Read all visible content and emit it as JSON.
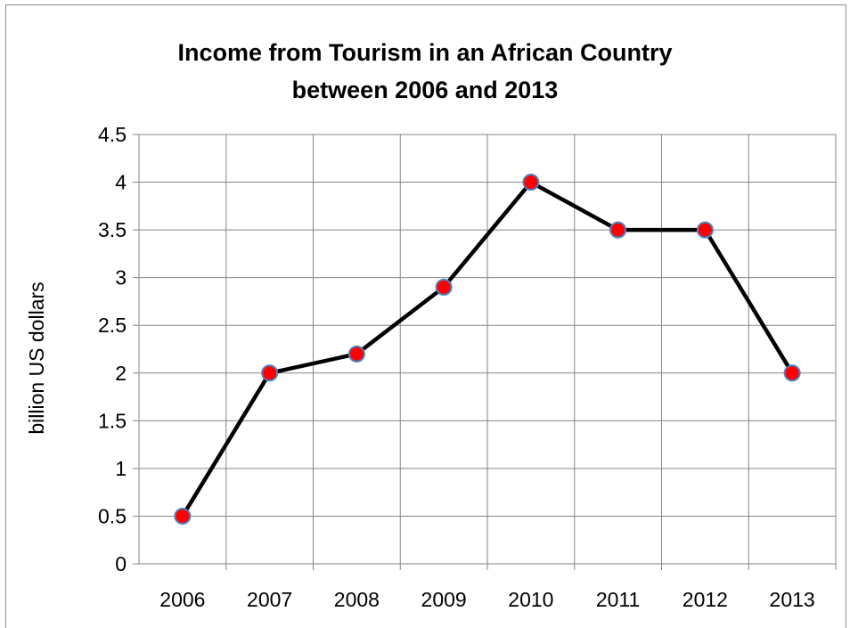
{
  "chart_data": {
    "type": "line",
    "title_line1": "Income from Tourism in an African Country",
    "title_line2": "between 2006 and 2013",
    "xlabel": "",
    "ylabel": "billion US dollars",
    "categories": [
      "2006",
      "2007",
      "2008",
      "2009",
      "2010",
      "2011",
      "2012",
      "2013"
    ],
    "values": [
      0.5,
      2.0,
      2.2,
      2.9,
      4.0,
      3.5,
      3.5,
      2.0
    ],
    "ylim": [
      0,
      4.5
    ],
    "yticks": [
      "0",
      "0.5",
      "1",
      "1.5",
      "2",
      "2.5",
      "3",
      "3.5",
      "4",
      "4.5"
    ],
    "grid": true,
    "line_color": "#000000",
    "marker_fill": "#ff0000",
    "marker_stroke": "#4f81bd",
    "gridline_color": "#868686"
  }
}
